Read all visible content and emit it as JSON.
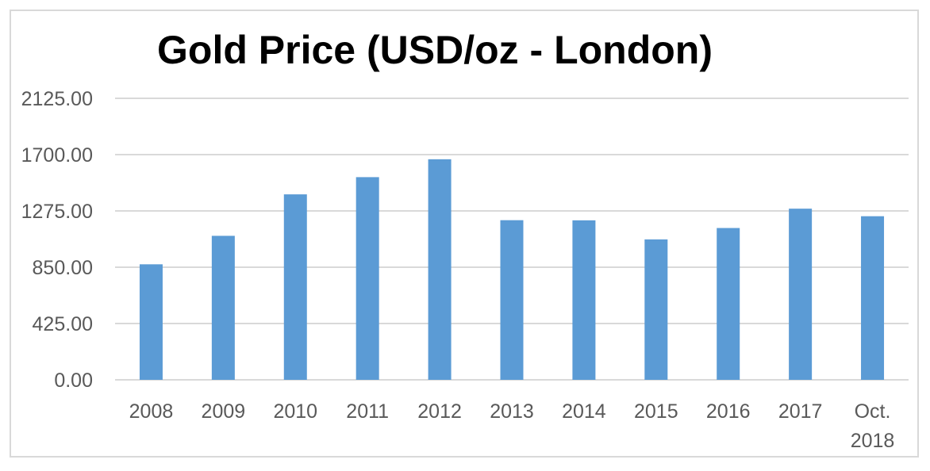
{
  "chart_data": {
    "type": "bar",
    "title": "Gold Price (USD/oz - London)",
    "xlabel": "",
    "ylabel": "",
    "categories": [
      "2008",
      "2009",
      "2010",
      "2011",
      "2012",
      "2013",
      "2014",
      "2015",
      "2016",
      "2017",
      "Oct. 2018"
    ],
    "values": [
      872,
      1087,
      1400,
      1530,
      1665,
      1205,
      1204,
      1060,
      1146,
      1292,
      1235
    ],
    "ylim": [
      0,
      2125
    ],
    "yticks": [
      "0.00",
      "425.00",
      "850.00",
      "1275.00",
      "1700.00",
      "2125.00"
    ],
    "ytick_values": [
      0,
      425,
      850,
      1275,
      1700,
      2125
    ],
    "grid": true,
    "legend": "none",
    "bar_color": "#5b9bd5"
  }
}
